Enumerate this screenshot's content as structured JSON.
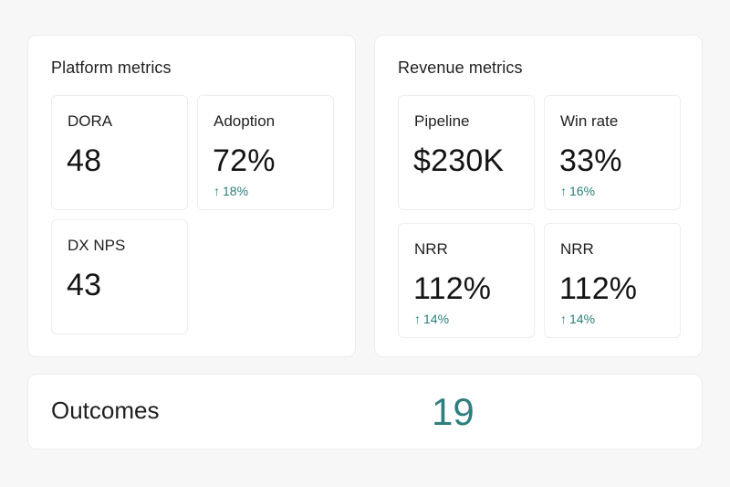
{
  "platform": {
    "title": "Platform metrics",
    "cards": [
      {
        "label": "DORA",
        "value": "48"
      },
      {
        "label": "Adoption",
        "value": "72%",
        "delta": "18%"
      },
      {
        "label": "DX NPS",
        "value": "43"
      }
    ]
  },
  "revenue": {
    "title": "Revenue metrics",
    "cards": [
      {
        "label": "Pipeline",
        "value": "$230K"
      },
      {
        "label": "Win rate",
        "value": "33%",
        "delta": "16%"
      },
      {
        "label": "NRR",
        "value": "112%",
        "delta": "14%"
      },
      {
        "label": "NRR",
        "value": "112%",
        "delta": "14%"
      }
    ]
  },
  "outcomes": {
    "title": "Outcomes",
    "value": "19"
  },
  "icons": {
    "delta_up": "arrow-up-icon"
  },
  "colors": {
    "accent": "#2e7f7d",
    "delta": "#2a7f7a"
  }
}
